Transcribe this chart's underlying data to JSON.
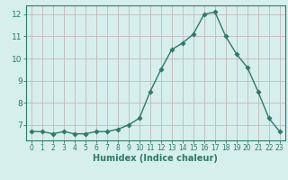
{
  "x": [
    0,
    1,
    2,
    3,
    4,
    5,
    6,
    7,
    8,
    9,
    10,
    11,
    12,
    13,
    14,
    15,
    16,
    17,
    18,
    19,
    20,
    21,
    22,
    23
  ],
  "y": [
    6.7,
    6.7,
    6.6,
    6.7,
    6.6,
    6.6,
    6.7,
    6.7,
    6.8,
    7.0,
    7.3,
    8.5,
    9.5,
    10.4,
    10.7,
    11.1,
    12.0,
    12.1,
    11.0,
    10.2,
    9.6,
    8.5,
    7.3,
    6.7
  ],
  "xlim": [
    -0.5,
    23.5
  ],
  "ylim": [
    6.3,
    12.4
  ],
  "yticks": [
    7,
    8,
    9,
    10,
    11,
    12
  ],
  "xticks": [
    0,
    1,
    2,
    3,
    4,
    5,
    6,
    7,
    8,
    9,
    10,
    11,
    12,
    13,
    14,
    15,
    16,
    17,
    18,
    19,
    20,
    21,
    22,
    23
  ],
  "xlabel": "Humidex (Indice chaleur)",
  "line_color": "#2d7a68",
  "marker_color": "#2d7a68",
  "bg_color": "#d6efed",
  "grid_major_color": "#c4b8b8",
  "grid_minor_color": "#bcd8d5",
  "spine_color": "#2d7a68",
  "tick_color": "#2d7a68",
  "label_color": "#2d7a68",
  "xlabel_fontsize": 7,
  "tick_fontsize_x": 5.5,
  "tick_fontsize_y": 6.5
}
